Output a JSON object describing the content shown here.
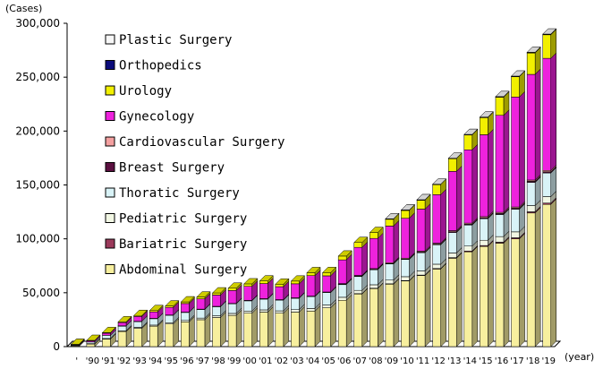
{
  "chart_data": {
    "type": "bar",
    "stacked": true,
    "three_d": true,
    "y_unit_label": "(Cases)",
    "x_unit_label": "(year)",
    "ylim": [
      0,
      300000
    ],
    "yticks": [
      0,
      50000,
      100000,
      150000,
      200000,
      250000,
      300000
    ],
    "ytick_labels": [
      "0",
      "50,000",
      "100,000",
      "150,000",
      "200,000",
      "250,000",
      "300,000"
    ],
    "grid": false,
    "legend_position": "top-left, inside plot, reverse stack order",
    "categories": [
      "'",
      "'90",
      "'91",
      "'92",
      "'93",
      "'94",
      "'95",
      "'96",
      "'97",
      "'98",
      "'99",
      "'00",
      "'01",
      "'02",
      "'03",
      "'04",
      "'05",
      "'06",
      "'07",
      "'08",
      "'09",
      "'10",
      "'11",
      "'12",
      "'13",
      "'14",
      "'15",
      "'16",
      "'17",
      "'18",
      "'19"
    ],
    "series": [
      {
        "name": "Abdominal Surgery",
        "color": "#f7ef9e",
        "values": [
          800,
          2500,
          7000,
          14000,
          17000,
          19000,
          21000,
          23000,
          25000,
          27000,
          29000,
          31000,
          32000,
          31000,
          32000,
          33000,
          36000,
          43000,
          49000,
          54000,
          58000,
          61000,
          66000,
          72000,
          82000,
          88000,
          93000,
          96000,
          100000,
          124000,
          132000
        ]
      },
      {
        "name": "Bariatric Surgery",
        "color": "#9b3a5b",
        "values": [
          0,
          0,
          0,
          0,
          0,
          0,
          0,
          0,
          0,
          0,
          0,
          0,
          0,
          0,
          0,
          0,
          0,
          0,
          200,
          200,
          300,
          300,
          400,
          500,
          600,
          700,
          800,
          900,
          1000,
          1100,
          1200
        ]
      },
      {
        "name": "Pediatric Surgery",
        "color": "#f2f7e4",
        "values": [
          100,
          300,
          500,
          700,
          900,
          1000,
          1200,
          1300,
          1500,
          1600,
          1800,
          2000,
          2100,
          2200,
          2300,
          2400,
          2600,
          2800,
          3000,
          3200,
          3400,
          3600,
          3800,
          4000,
          4300,
          4600,
          4900,
          5200,
          5500,
          5800,
          6000
        ]
      },
      {
        "name": "Thoratic Surgery",
        "color": "#d9f3f7",
        "values": [
          500,
          1500,
          3000,
          4500,
          5500,
          6000,
          7000,
          7500,
          8000,
          8500,
          9000,
          9500,
          10000,
          10000,
          10500,
          11000,
          11500,
          12000,
          13000,
          14000,
          15000,
          16000,
          17000,
          18000,
          19000,
          19500,
          20000,
          20500,
          21000,
          21500,
          22000
        ]
      },
      {
        "name": "Breast Surgery",
        "color": "#5b1040",
        "values": [
          0,
          0,
          0,
          0,
          0,
          0,
          0,
          0,
          0,
          0,
          0,
          0,
          0,
          0,
          0,
          0,
          0,
          100,
          200,
          300,
          400,
          400,
          500,
          600,
          700,
          800,
          800,
          900,
          900,
          1000,
          1000
        ]
      },
      {
        "name": "Cardiovascular Surgery",
        "color": "#f4a0a0",
        "values": [
          0,
          0,
          0,
          100,
          100,
          200,
          200,
          200,
          300,
          300,
          300,
          400,
          400,
          400,
          500,
          500,
          600,
          600,
          700,
          700,
          800,
          800,
          900,
          900,
          1000,
          1000,
          1100,
          1100,
          1200,
          1200,
          1300
        ]
      },
      {
        "name": "Gynecology",
        "color": "#ee22dd",
        "values": [
          600,
          1200,
          2000,
          3000,
          4500,
          6000,
          7000,
          8000,
          9500,
          10500,
          12000,
          13000,
          14000,
          12000,
          13000,
          19000,
          15000,
          22000,
          26000,
          28000,
          34000,
          37000,
          39000,
          45000,
          55000,
          68000,
          76000,
          90000,
          102000,
          98000,
          104000
        ]
      },
      {
        "name": "Urology",
        "color": "#f2f000",
        "values": [
          100,
          300,
          500,
          700,
          900,
          1200,
          1300,
          1500,
          1700,
          1900,
          2100,
          2300,
          2400,
          2300,
          2500,
          2700,
          3000,
          3500,
          4500,
          5500,
          6500,
          7500,
          8500,
          9500,
          12000,
          14000,
          16000,
          17000,
          19000,
          20000,
          22000
        ]
      },
      {
        "name": "Orthopedics",
        "color": "#0b0b7a",
        "values": [
          0,
          0,
          0,
          0,
          0,
          0,
          0,
          0,
          0,
          0,
          0,
          0,
          0,
          0,
          0,
          0,
          0,
          0,
          0,
          0,
          100,
          100,
          100,
          100,
          100,
          100,
          200,
          200,
          200,
          200,
          200
        ]
      },
      {
        "name": "Plastic Surgery",
        "color": "#f7f7f7",
        "values": [
          0,
          0,
          0,
          0,
          0,
          0,
          0,
          0,
          0,
          0,
          0,
          0,
          0,
          0,
          0,
          0,
          0,
          0,
          0,
          0,
          100,
          100,
          100,
          100,
          100,
          200,
          200,
          200,
          200,
          300,
          300
        ]
      }
    ]
  }
}
